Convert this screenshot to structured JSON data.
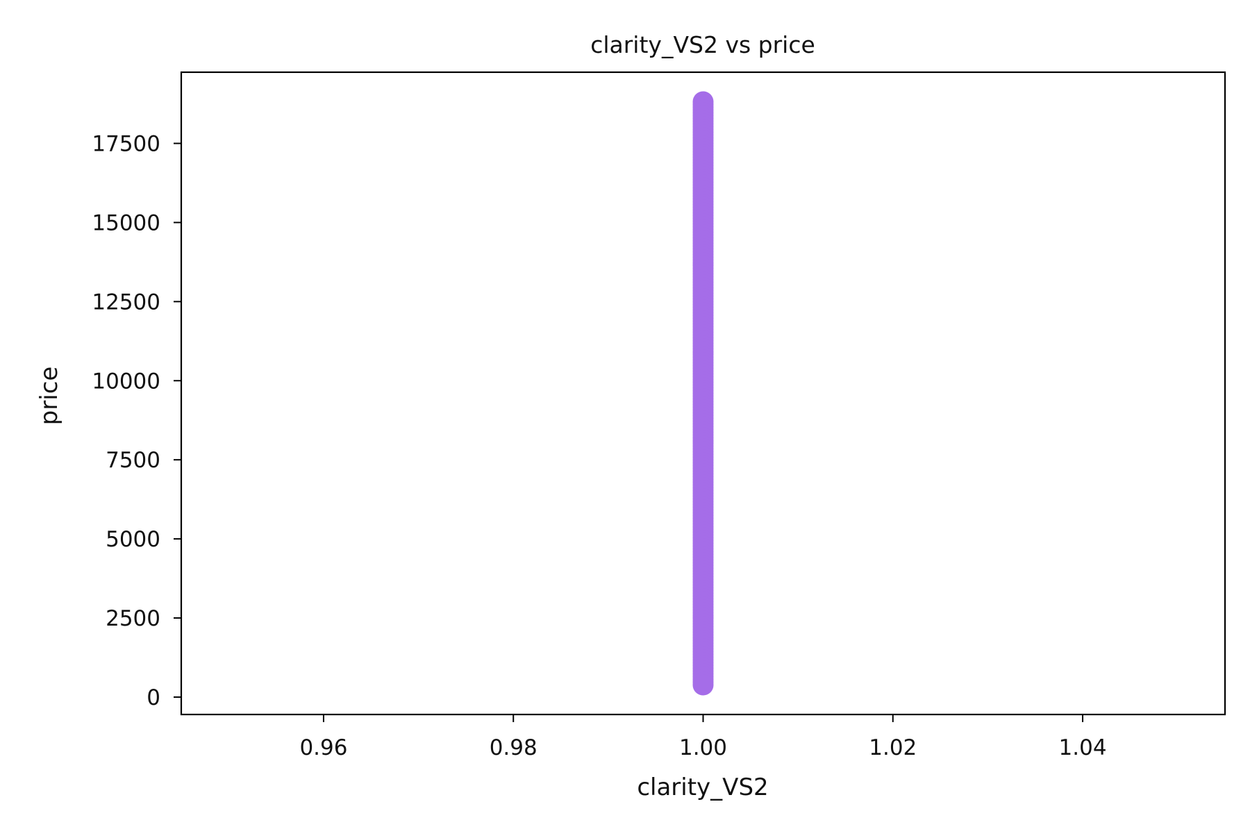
{
  "chart_data": {
    "type": "scatter",
    "title": "clarity_VS2 vs price",
    "xlabel": "clarity_VS2",
    "ylabel": "price",
    "xlim": [
      0.945,
      1.055
    ],
    "ylim": [
      -550,
      19750
    ],
    "xticks": [
      0.96,
      0.98,
      1.0,
      1.02,
      1.04
    ],
    "xtick_labels": [
      "0.96",
      "0.98",
      "1.00",
      "1.02",
      "1.04"
    ],
    "yticks": [
      0,
      2500,
      5000,
      7500,
      10000,
      12500,
      15000,
      17500
    ],
    "ytick_labels": [
      "0",
      "2500",
      "5000",
      "7500",
      "10000",
      "12500",
      "15000",
      "17500"
    ],
    "grid": false,
    "marker_color": "#a56de8",
    "series": [
      {
        "x_value": 1.0,
        "price_min": 326,
        "price_max": 18818
      }
    ]
  }
}
